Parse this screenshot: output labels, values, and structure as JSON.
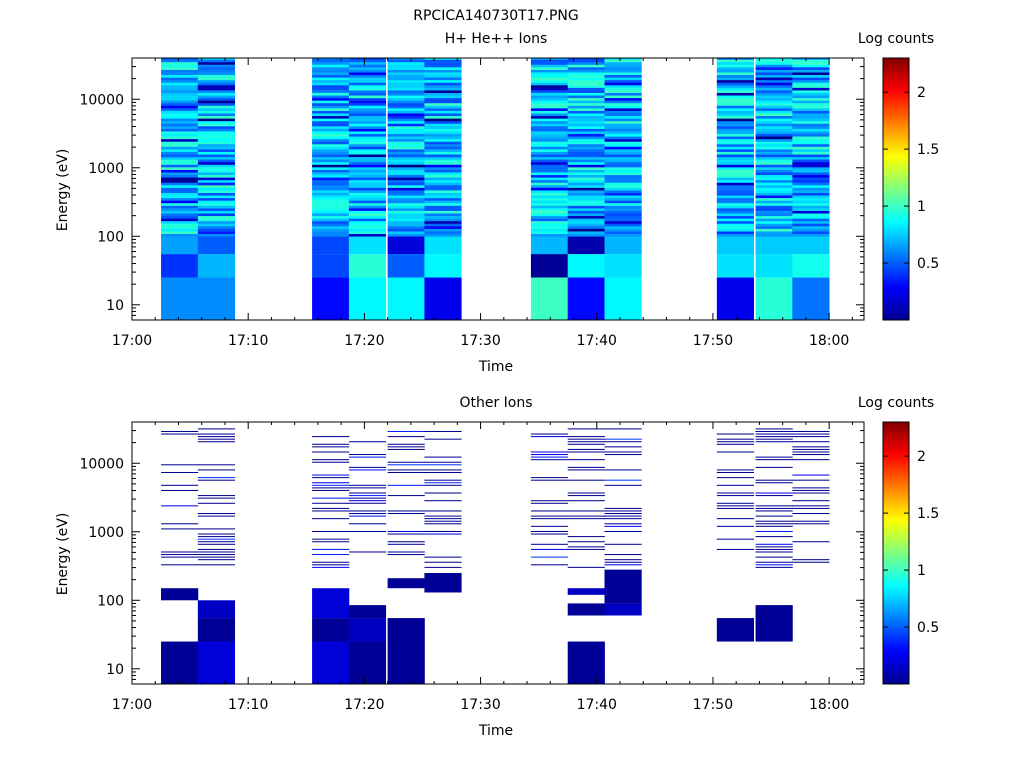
{
  "figure": {
    "title": "RPCICA140730T17.PNG"
  },
  "colorbar": {
    "label": "Log counts",
    "ticks": [
      "0.5",
      "1",
      "1.5",
      "2"
    ],
    "tick_values": [
      0.5,
      1,
      1.5,
      2
    ],
    "range": [
      0,
      2.3
    ]
  },
  "chart_data": [
    {
      "type": "heatmap",
      "title": "H+ He++ Ions",
      "xlabel": "Time",
      "ylabel": "Energy (eV)",
      "x_ticks": [
        "17:00",
        "17:10",
        "17:20",
        "17:30",
        "17:40",
        "17:50",
        "18:00"
      ],
      "y_ticks": [
        "10",
        "100",
        "1000",
        "10000"
      ],
      "y_scale": "log",
      "xlim": [
        "17:00",
        "18:03"
      ],
      "ylim": [
        6,
        40000
      ],
      "grid": false,
      "colorbar_label": "Log counts",
      "time_bins": [
        "17:02:30",
        "17:05:40",
        "17:15:30",
        "17:18:40",
        "17:22:00",
        "17:25:10",
        "17:34:20",
        "17:37:30",
        "17:40:40",
        "17:50:20",
        "17:53:40",
        "17:56:50"
      ],
      "bin_width_min": 3.2,
      "low_energy_rows": [
        {
          "label": "10",
          "values": [
            0.6,
            0.6,
            0.3,
            0.85,
            0.85,
            0.25,
            1.0,
            0.3,
            0.85,
            0.25,
            0.95,
            0.55
          ]
        },
        {
          "label": "50",
          "values": [
            0.4,
            0.7,
            0.45,
            0.95,
            0.5,
            0.85,
            0.05,
            0.85,
            0.8,
            0.8,
            0.8,
            0.9
          ]
        },
        {
          "label": "85",
          "values": [
            0.65,
            0.5,
            0.45,
            0.8,
            0.2,
            0.8,
            0.7,
            0.1,
            0.7,
            0.75,
            0.75,
            0.75
          ]
        }
      ]
    },
    {
      "type": "heatmap",
      "title": "Other Ions",
      "xlabel": "Time",
      "ylabel": "Energy (eV)",
      "x_ticks": [
        "17:00",
        "17:10",
        "17:20",
        "17:30",
        "17:40",
        "17:50",
        "18:00"
      ],
      "y_ticks": [
        "10",
        "100",
        "1000",
        "10000"
      ],
      "y_scale": "log",
      "xlim": [
        "17:00",
        "18:03"
      ],
      "ylim": [
        6,
        40000
      ],
      "grid": false,
      "colorbar_label": "Log counts",
      "time_bins": [
        "17:02:30",
        "17:05:40",
        "17:15:30",
        "17:18:40",
        "17:22:00",
        "17:25:10",
        "17:34:20",
        "17:37:30",
        "17:40:40",
        "17:50:20",
        "17:53:40",
        "17:56:50"
      ],
      "bin_width_min": 3.2,
      "low_energy_blocks": [
        {
          "bin": "17:02:30",
          "e_range": [
            6,
            25
          ],
          "value": 0.05
        },
        {
          "bin": "17:05:40",
          "e_range": [
            6,
            25
          ],
          "value": 0.2
        },
        {
          "bin": "17:05:40",
          "e_range": [
            25,
            55
          ],
          "value": 0.05
        },
        {
          "bin": "17:05:40",
          "e_range": [
            55,
            100
          ],
          "value": 0.15
        },
        {
          "bin": "17:02:30",
          "e_range": [
            100,
            150
          ],
          "value": 0.05
        },
        {
          "bin": "17:15:30",
          "e_range": [
            6,
            25
          ],
          "value": 0.2
        },
        {
          "bin": "17:15:30",
          "e_range": [
            25,
            55
          ],
          "value": 0.05
        },
        {
          "bin": "17:15:30",
          "e_range": [
            55,
            150
          ],
          "value": 0.2
        },
        {
          "bin": "17:18:40",
          "e_range": [
            6,
            25
          ],
          "value": 0.05
        },
        {
          "bin": "17:18:40",
          "e_range": [
            25,
            55
          ],
          "value": 0.15
        },
        {
          "bin": "17:18:40",
          "e_range": [
            55,
            85
          ],
          "value": 0.05
        },
        {
          "bin": "17:22:00",
          "e_range": [
            6,
            55
          ],
          "value": 0.05
        },
        {
          "bin": "17:22:00",
          "e_range": [
            150,
            210
          ],
          "value": 0.05
        },
        {
          "bin": "17:25:10",
          "e_range": [
            130,
            250
          ],
          "value": 0.05
        },
        {
          "bin": "17:37:30",
          "e_range": [
            6,
            25
          ],
          "value": 0.05
        },
        {
          "bin": "17:37:30",
          "e_range": [
            60,
            90
          ],
          "value": 0.05
        },
        {
          "bin": "17:37:30",
          "e_range": [
            120,
            150
          ],
          "value": 0.15
        },
        {
          "bin": "17:40:40",
          "e_range": [
            60,
            90
          ],
          "value": 0.15
        },
        {
          "bin": "17:40:40",
          "e_range": [
            90,
            280
          ],
          "value": 0.05
        },
        {
          "bin": "17:50:20",
          "e_range": [
            25,
            55
          ],
          "value": 0.05
        },
        {
          "bin": "17:53:40",
          "e_range": [
            25,
            85
          ],
          "value": 0.05
        }
      ]
    }
  ]
}
